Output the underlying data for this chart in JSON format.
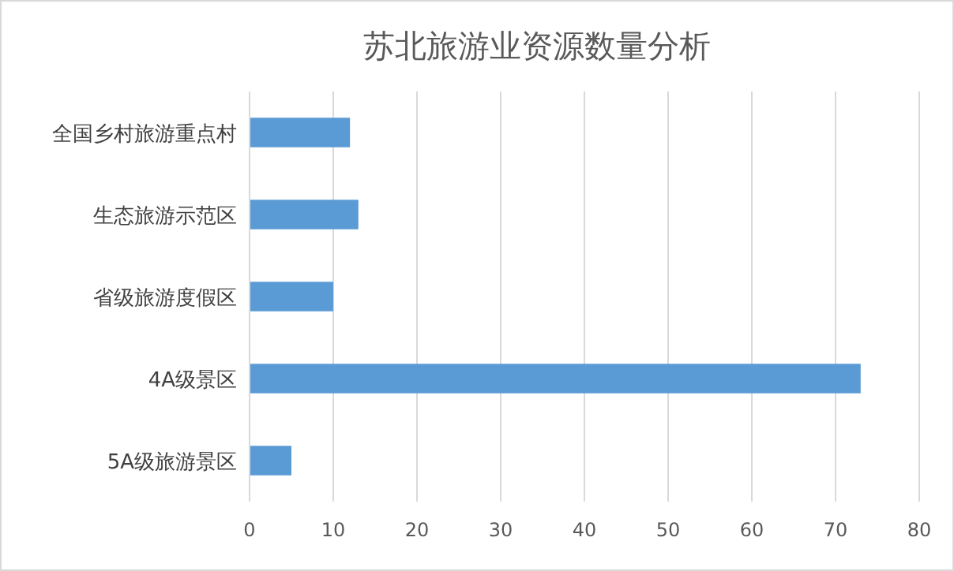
{
  "chart_data": {
    "type": "bar",
    "orientation": "horizontal",
    "title": "苏北旅游业资源数量分析",
    "categories": [
      "全国乡村旅游重点村",
      "生态旅游示范区",
      "省级旅游度假区",
      "4A级景区",
      "5A级旅游景区"
    ],
    "values": [
      12,
      13,
      10,
      73,
      5
    ],
    "color": "#5b9bd5",
    "xlim": [
      0,
      80
    ],
    "xticks": [
      0,
      10,
      20,
      30,
      40,
      50,
      60,
      70,
      80
    ],
    "grid": "x"
  }
}
